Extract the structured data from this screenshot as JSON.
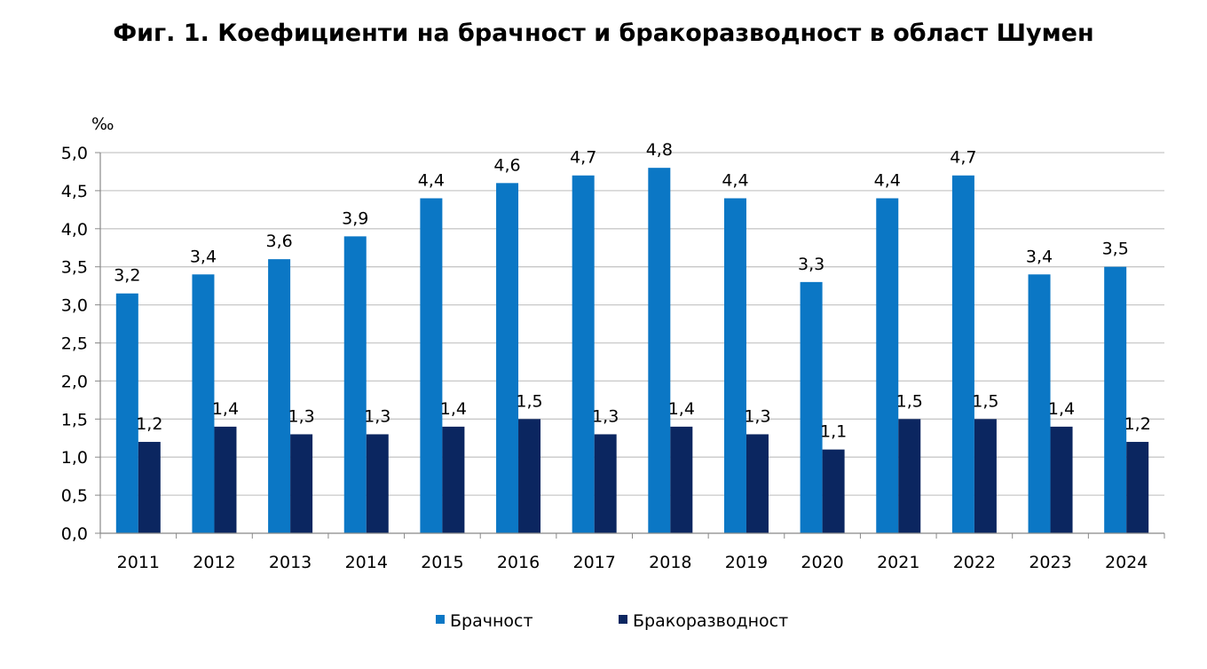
{
  "chart_data": {
    "type": "bar",
    "title": "Фиг. 1. Коефициенти на брачност и бракоразводност в област Шумен",
    "ylabel": "‰",
    "xlabel": "",
    "ylim": [
      0,
      5
    ],
    "ytick_step": 0.5,
    "yticks": [
      "0,0",
      "0,5",
      "1,0",
      "1,5",
      "2,0",
      "2,5",
      "3,0",
      "3,5",
      "4,0",
      "4,5",
      "5,0"
    ],
    "grid": true,
    "legend_position": "bottom",
    "categories": [
      "2011",
      "2012",
      "2013",
      "2014",
      "2015",
      "2016",
      "2017",
      "2018",
      "2019",
      "2020",
      "2021",
      "2022",
      "2023",
      "2024"
    ],
    "series": [
      {
        "name": "Брачност",
        "color": "#0B77C5",
        "values": [
          3.15,
          3.4,
          3.6,
          3.9,
          4.4,
          4.6,
          4.7,
          4.8,
          4.4,
          3.3,
          4.4,
          4.7,
          3.4,
          3.5
        ],
        "labels": [
          "3,2",
          "3,4",
          "3,6",
          "3,9",
          "4,4",
          "4,6",
          "4,7",
          "4,8",
          "4,4",
          "3,3",
          "4,4",
          "4,7",
          "3,4",
          "3,5"
        ]
      },
      {
        "name": "Бракоразводност",
        "color": "#0B2660",
        "values": [
          1.2,
          1.4,
          1.3,
          1.3,
          1.4,
          1.5,
          1.3,
          1.4,
          1.3,
          1.1,
          1.5,
          1.5,
          1.4,
          1.2
        ],
        "labels": [
          "1,2",
          "1,4",
          "1,3",
          "1,3",
          "1,4",
          "1,5",
          "1,3",
          "1,4",
          "1,3",
          "1,1",
          "1,5",
          "1,5",
          "1,4",
          "1,2"
        ]
      }
    ]
  }
}
